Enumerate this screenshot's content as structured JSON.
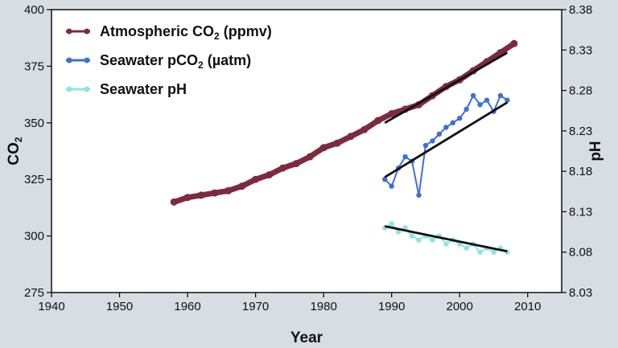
{
  "chart_data": {
    "type": "line",
    "title": "",
    "xlabel": "Year",
    "ylabel_left": "CO2",
    "ylabel_right": "pH",
    "xlim": [
      1940,
      2015
    ],
    "ylim_left": [
      275,
      400
    ],
    "ylim_right": [
      8.03,
      8.38
    ],
    "x_ticks": [
      "1940",
      "1950",
      "1960",
      "1970",
      "1980",
      "1990",
      "2000",
      "2010"
    ],
    "y_ticks_left": [
      "275",
      "300",
      "325",
      "350",
      "375",
      "400"
    ],
    "y_ticks_right": [
      "8.03",
      "8.08",
      "8.13",
      "8.18",
      "8.23",
      "8.28",
      "8.33",
      "8.38"
    ],
    "grid": false,
    "legend_position": "top-left",
    "series": [
      {
        "name": "Atmospheric CO₂ (ppmv)",
        "axis": "left",
        "color": "#7e2a3e",
        "x": [
          1958,
          1960,
          1962,
          1964,
          1966,
          1968,
          1970,
          1972,
          1974,
          1976,
          1978,
          1980,
          1982,
          1984,
          1986,
          1988,
          1990,
          1992,
          1994,
          1996,
          1998,
          2000,
          2002,
          2004,
          2006,
          2008
        ],
        "values": [
          315,
          317,
          318,
          319,
          320,
          322,
          325,
          327,
          330,
          332,
          335,
          339,
          341,
          344,
          347,
          351,
          354,
          356,
          358,
          362,
          366,
          369,
          373,
          377,
          381,
          385
        ]
      },
      {
        "name": "Seawater pCO₂ (µatm)",
        "axis": "left",
        "color": "#3d6fd6",
        "x": [
          1989,
          1990,
          1991,
          1992,
          1993,
          1994,
          1995,
          1996,
          1997,
          1998,
          1999,
          2000,
          2001,
          2002,
          2003,
          2004,
          2005,
          2006,
          2007
        ],
        "values": [
          325,
          322,
          330,
          335,
          333,
          318,
          340,
          342,
          345,
          348,
          350,
          352,
          356,
          362,
          358,
          360,
          355,
          362,
          360
        ]
      },
      {
        "name": "Seawater pH",
        "axis": "right",
        "color": "#8fe3e6",
        "x": [
          1989,
          1990,
          1991,
          1992,
          1993,
          1994,
          1995,
          1996,
          1997,
          1998,
          1999,
          2000,
          2001,
          2002,
          2003,
          2004,
          2005,
          2006,
          2007
        ],
        "values": [
          8.11,
          8.115,
          8.105,
          8.11,
          8.1,
          8.095,
          8.1,
          8.095,
          8.1,
          8.09,
          8.095,
          8.09,
          8.085,
          8.09,
          8.08,
          8.085,
          8.08,
          8.085,
          8.08
        ]
      }
    ],
    "trend_lines": [
      {
        "axis": "left",
        "x": [
          1989,
          2007
        ],
        "values": [
          350,
          381
        ]
      },
      {
        "axis": "left",
        "x": [
          1989,
          2007
        ],
        "values": [
          326,
          359
        ]
      },
      {
        "axis": "right",
        "x": [
          1989,
          2007
        ],
        "values": [
          8.112,
          8.081
        ]
      }
    ]
  }
}
